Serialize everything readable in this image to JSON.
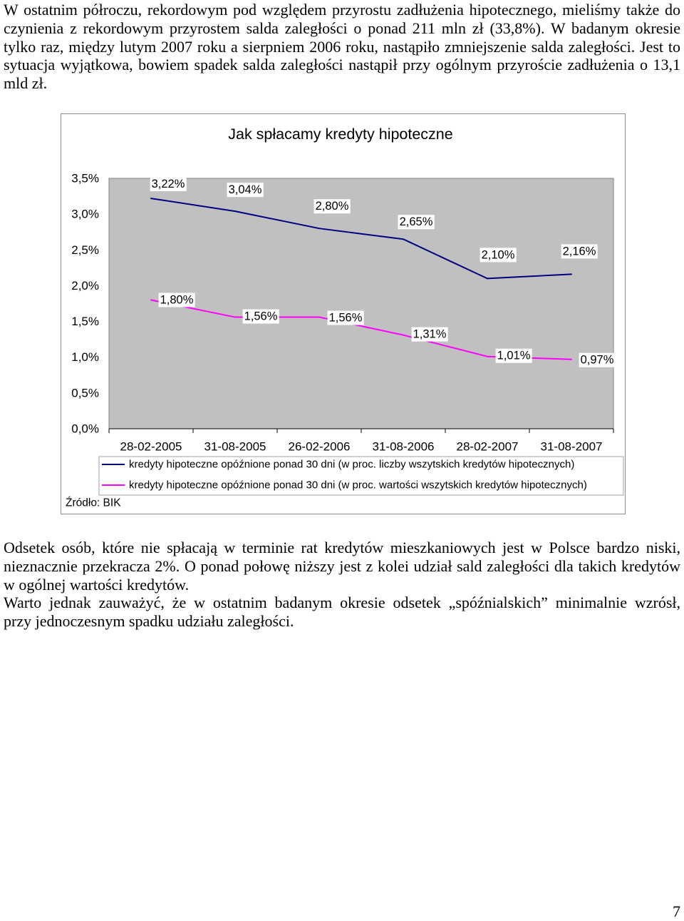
{
  "intro_paragraph": {
    "lines": [
      "W ostatnim półroczu, rekordowym pod względem przyrostu zadłużenia hipotecznego, mieliśmy także do",
      "czynienia z rekordowym przyrostem salda zaległości o ponad 211 mln zł (33,8%). W badanym okresie",
      "tylko raz, między lutym 2007 roku a sierpniem 2006 roku, nastąpiło zmniejszenie salda zaległości. Jest to",
      "sytuacja wyjątkowa, bowiem spadek salda zaległości nastąpił przy ogólnym przyroście zadłużenia o 13,1",
      "mld zł."
    ]
  },
  "chart_data": {
    "type": "line",
    "title": "Jak spłacamy kredyty hipoteczne",
    "categories": [
      "28-02-2005",
      "31-08-2005",
      "26-02-2006",
      "31-08-2006",
      "28-02-2007",
      "31-08-2007"
    ],
    "ylim": [
      0,
      3.5
    ],
    "y_tick_labels": [
      "0,0%",
      "0,5%",
      "1,0%",
      "1,5%",
      "2,0%",
      "2,5%",
      "3,0%",
      "3,5%"
    ],
    "grid": false,
    "legend_position": "bottom",
    "plot_background": "#c0c0c0",
    "series": [
      {
        "name": "kredyty hipoteczne opóźnione ponad 30 dni (w proc. liczby wszytskich kredytów hipotecznych)",
        "color": "#000080",
        "values": [
          3.22,
          3.04,
          2.8,
          2.65,
          2.1,
          2.16
        ],
        "data_labels": [
          "3,22%",
          "3,04%",
          "2,80%",
          "2,65%",
          "2,10%",
          "2,16%"
        ]
      },
      {
        "name": "kredyty hipoteczne opóźnione ponad 30 dni (w proc. wartości wszytskich kredytów hipotecznych)",
        "color": "#ff00ff",
        "values": [
          1.8,
          1.56,
          1.56,
          1.31,
          1.01,
          0.97
        ],
        "data_labels": [
          "1,80%",
          "1,56%",
          "1,56%",
          "1,31%",
          "1,01%",
          "0,97%"
        ]
      }
    ],
    "source": "Źródło: BIK"
  },
  "closing_paragraphs": [
    {
      "lines": [
        "Odsetek osób, które nie spłacają w terminie rat kredytów mieszkaniowych jest w Polsce bardzo niski,",
        "nieznacznie przekracza 2%. O ponad połowę niższy jest z kolei udział sald zaległości dla takich kredytów",
        "w ogólnej wartości kredytów."
      ]
    },
    {
      "lines": [
        "Warto jednak zauważyć, że w ostatnim badanym okresie odsetek „spóźnialskich” minimalnie wzrósł,",
        "przy jednoczesnym spadku udziału zaległości."
      ]
    }
  ],
  "page_number": "7"
}
